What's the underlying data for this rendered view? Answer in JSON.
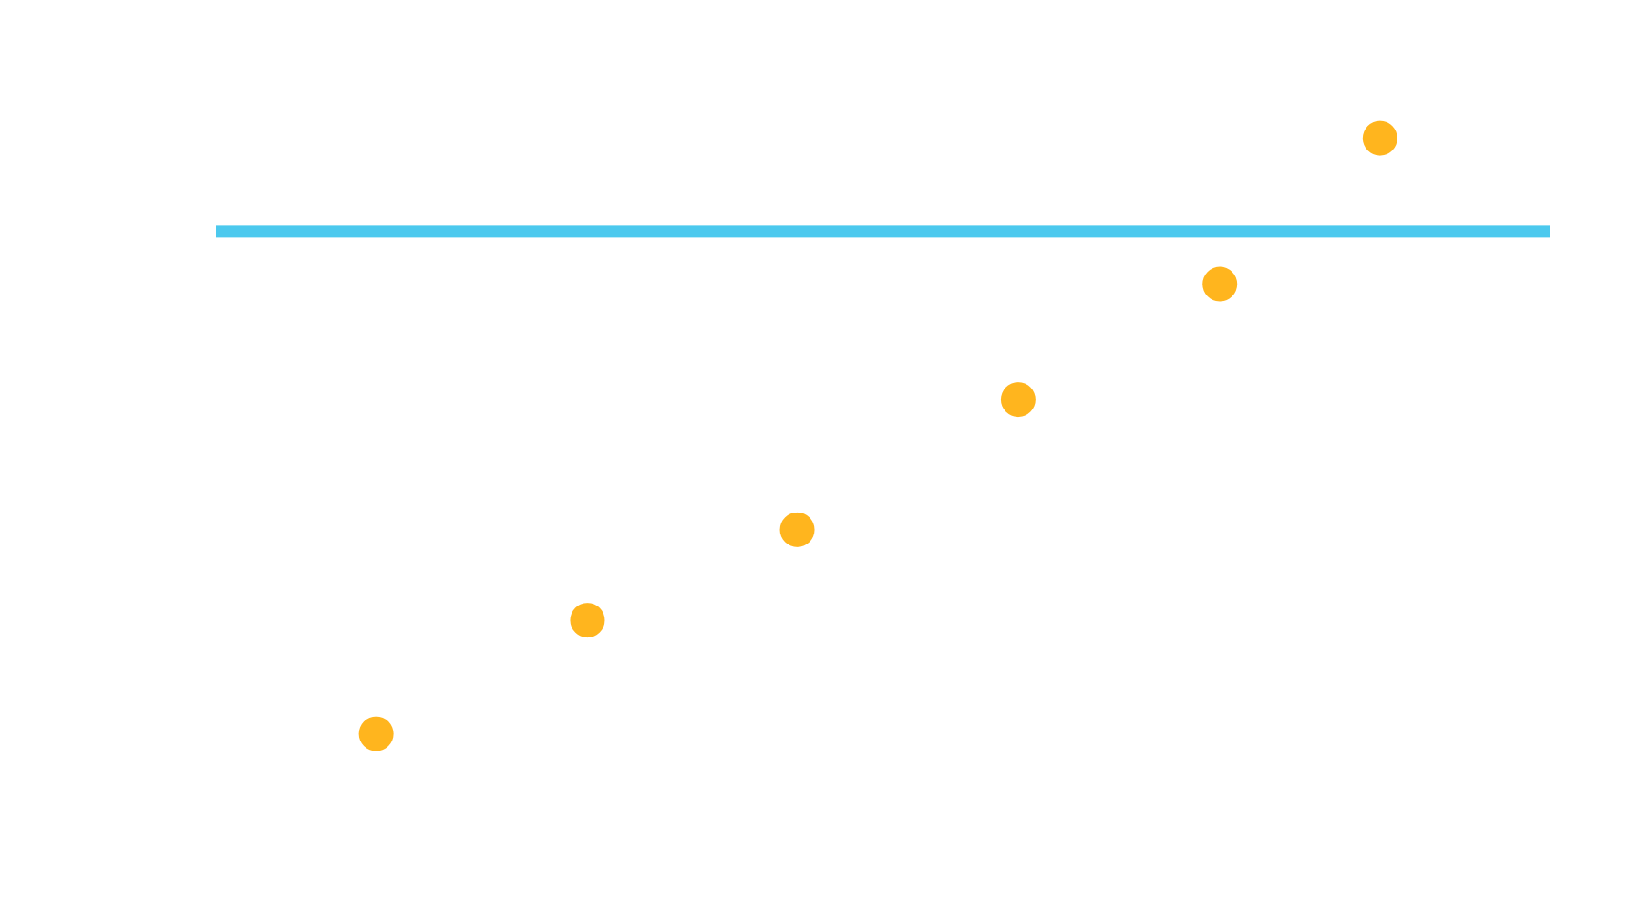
{
  "chart_data": {
    "type": "scatter",
    "title": "",
    "xlabel": "",
    "ylabel": "",
    "grid": false,
    "legend": "none",
    "xlim": [
      0,
      8.33
    ],
    "ylim": [
      0,
      9.66
    ],
    "series": [
      {
        "color": "#FFB51E",
        "x": [
          1,
          2.32,
          3.63,
          5.01,
          6.27,
          7.27
        ],
        "y": [
          1.93,
          3.16,
          4.14,
          5.55,
          6.8,
          8.38
        ]
      }
    ],
    "reference_line": {
      "y": 7.37,
      "color": "#4CC9EE"
    }
  }
}
